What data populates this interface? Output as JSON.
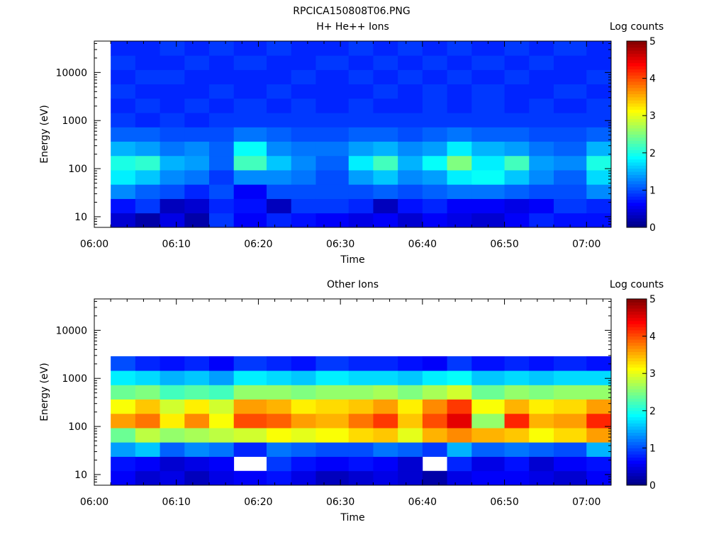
{
  "figure_title": "RPCICA150808T06.PNG",
  "chart_data": [
    {
      "type": "heatmap",
      "title": "H+ He++ Ions",
      "xlabel": "Time",
      "ylabel": "Energy (eV)",
      "x_ticks": [
        "06:00",
        "06:10",
        "06:20",
        "06:30",
        "06:40",
        "06:50",
        "07:00"
      ],
      "x_range": [
        "06:00",
        "07:03"
      ],
      "y_scale": "log",
      "y_ticks": [
        "10",
        "100",
        "1000",
        "10000"
      ],
      "y_range": [
        6,
        45000
      ],
      "colorbar": {
        "label": "Log counts",
        "ticks": [
          "0",
          "1",
          "2",
          "3",
          "4",
          "5"
        ],
        "range": [
          0,
          5
        ],
        "colormap": "jet"
      },
      "bins": [
        {
          "start": "06:02",
          "end": "06:05",
          "values": [
            0.4,
            0.7,
            1.3,
            1.8,
            2.0,
            1.5,
            1.1,
            0.9,
            0.8,
            0.9,
            0.8,
            0.9,
            0.8
          ]
        },
        {
          "start": "06:05",
          "end": "06:08",
          "values": [
            0.2,
            0.9,
            1.1,
            1.6,
            2.1,
            1.4,
            1.1,
            0.8,
            0.9,
            0.8,
            0.9,
            0.8,
            0.8
          ]
        },
        {
          "start": "06:08",
          "end": "06:11",
          "values": [
            0.5,
            0.3,
            1.0,
            1.3,
            1.5,
            1.2,
            1.0,
            0.9,
            0.8,
            0.8,
            0.9,
            0.8,
            0.9
          ]
        },
        {
          "start": "06:11",
          "end": "06:14",
          "values": [
            0.2,
            0.4,
            0.8,
            1.2,
            1.4,
            1.3,
            1.0,
            0.8,
            0.9,
            0.8,
            0.8,
            0.9,
            0.8
          ]
        },
        {
          "start": "06:14",
          "end": "06:17",
          "values": [
            0.9,
            0.8,
            1.0,
            0.9,
            1.1,
            1.1,
            1.0,
            0.9,
            0.8,
            0.9,
            0.8,
            0.8,
            0.9
          ]
        },
        {
          "start": "06:17",
          "end": "06:21",
          "values": [
            0.6,
            0.7,
            0.6,
            1.3,
            2.2,
            1.9,
            1.2,
            0.9,
            0.9,
            0.8,
            0.8,
            0.9,
            0.8
          ]
        },
        {
          "start": "06:21",
          "end": "06:24",
          "values": [
            0.8,
            0.3,
            1.0,
            1.3,
            1.6,
            1.3,
            1.1,
            0.9,
            0.8,
            0.9,
            0.8,
            0.8,
            0.9
          ]
        },
        {
          "start": "06:24",
          "end": "06:27",
          "values": [
            0.7,
            0.9,
            1.0,
            1.2,
            1.3,
            1.2,
            1.0,
            0.9,
            0.9,
            0.8,
            0.9,
            0.8,
            0.8
          ]
        },
        {
          "start": "06:27",
          "end": "06:31",
          "values": [
            0.6,
            0.9,
            1.0,
            1.0,
            1.1,
            1.2,
            1.0,
            0.9,
            0.8,
            0.8,
            0.8,
            0.9,
            0.8
          ]
        },
        {
          "start": "06:31",
          "end": "06:34",
          "values": [
            0.5,
            0.8,
            1.0,
            1.4,
            1.8,
            1.4,
            1.1,
            0.9,
            0.9,
            0.8,
            0.9,
            0.8,
            0.9
          ]
        },
        {
          "start": "06:34",
          "end": "06:37",
          "values": [
            0.6,
            0.3,
            1.1,
            1.6,
            2.2,
            1.5,
            1.1,
            0.9,
            0.8,
            0.9,
            0.8,
            0.9,
            0.8
          ]
        },
        {
          "start": "06:37",
          "end": "06:40",
          "values": [
            0.4,
            0.7,
            1.0,
            1.3,
            1.5,
            1.3,
            1.0,
            0.9,
            0.8,
            0.8,
            0.9,
            0.8,
            0.9
          ]
        },
        {
          "start": "06:40",
          "end": "06:43",
          "values": [
            0.6,
            0.8,
            1.1,
            1.4,
            1.9,
            1.4,
            1.1,
            0.9,
            0.9,
            0.9,
            0.8,
            0.9,
            0.8
          ]
        },
        {
          "start": "06:43",
          "end": "06:46",
          "values": [
            0.5,
            0.6,
            1.2,
            1.8,
            2.5,
            1.8,
            1.2,
            0.9,
            0.8,
            0.8,
            0.9,
            0.8,
            0.9
          ]
        },
        {
          "start": "06:46",
          "end": "06:50",
          "values": [
            0.4,
            0.6,
            1.2,
            1.9,
            1.8,
            1.5,
            1.1,
            0.9,
            0.9,
            0.9,
            0.8,
            0.9,
            0.8
          ]
        },
        {
          "start": "06:50",
          "end": "06:53",
          "values": [
            0.6,
            0.5,
            1.1,
            1.6,
            2.2,
            1.4,
            1.1,
            0.9,
            0.8,
            0.8,
            0.9,
            0.8,
            0.9
          ]
        },
        {
          "start": "06:53",
          "end": "06:56",
          "values": [
            0.8,
            0.6,
            1.0,
            1.3,
            1.4,
            1.2,
            1.0,
            0.9,
            0.9,
            0.8,
            0.8,
            0.9,
            0.8
          ]
        },
        {
          "start": "06:56",
          "end": "07:00",
          "values": [
            0.7,
            0.9,
            1.0,
            1.1,
            1.3,
            1.1,
            1.0,
            0.9,
            0.8,
            0.9,
            0.8,
            0.8,
            0.9
          ]
        },
        {
          "start": "07:00",
          "end": "07:03",
          "values": [
            0.7,
            0.8,
            1.3,
            1.7,
            2.0,
            1.5,
            1.1,
            0.9,
            0.9,
            0.8,
            0.9,
            0.8,
            0.8
          ]
        }
      ]
    },
    {
      "type": "heatmap",
      "title": "Other Ions",
      "xlabel": "Time",
      "ylabel": "Energy (eV)",
      "x_ticks": [
        "06:00",
        "06:10",
        "06:20",
        "06:30",
        "06:40",
        "06:50",
        "07:00"
      ],
      "x_range": [
        "06:00",
        "07:03"
      ],
      "y_scale": "log",
      "y_ticks": [
        "10",
        "100",
        "1000",
        "10000"
      ],
      "y_range": [
        6,
        45000
      ],
      "colorbar": {
        "label": "Log counts",
        "ticks": [
          "0",
          "1",
          "2",
          "3",
          "4",
          "5"
        ],
        "range": [
          0,
          5
        ],
        "colormap": "jet"
      },
      "bins": [
        {
          "start": "06:02",
          "end": "06:05",
          "values": [
            0.6,
            0.7,
            1.4,
            2.4,
            3.6,
            3.1,
            2.4,
            1.8,
            1.0,
            null,
            null,
            null,
            null
          ]
        },
        {
          "start": "06:05",
          "end": "06:08",
          "values": [
            0.4,
            0.6,
            1.6,
            2.8,
            3.8,
            3.4,
            2.5,
            1.7,
            0.8,
            null,
            null,
            null,
            null
          ]
        },
        {
          "start": "06:08",
          "end": "06:11",
          "values": [
            0.5,
            0.4,
            1.1,
            2.6,
            3.2,
            2.9,
            2.2,
            1.5,
            0.7,
            null,
            null,
            null,
            null
          ]
        },
        {
          "start": "06:11",
          "end": "06:14",
          "values": [
            0.3,
            0.5,
            1.3,
            2.7,
            3.7,
            3.2,
            2.3,
            1.6,
            0.8,
            null,
            null,
            null,
            null
          ]
        },
        {
          "start": "06:14",
          "end": "06:17",
          "values": [
            0.5,
            0.6,
            1.2,
            2.8,
            3.1,
            2.9,
            2.2,
            1.4,
            0.6,
            null,
            null,
            null,
            null
          ]
        },
        {
          "start": "06:17",
          "end": "06:21",
          "values": [
            0.6,
            null,
            0.8,
            2.9,
            4.0,
            3.6,
            2.6,
            1.8,
            0.9,
            null,
            null,
            null,
            null
          ]
        },
        {
          "start": "06:21",
          "end": "06:24",
          "values": [
            0.7,
            0.9,
            1.2,
            3.1,
            3.9,
            3.5,
            2.6,
            1.7,
            0.8,
            null,
            null,
            null,
            null
          ]
        },
        {
          "start": "06:24",
          "end": "06:27",
          "values": [
            0.5,
            0.7,
            1.1,
            3.0,
            3.6,
            3.2,
            2.5,
            1.6,
            0.7,
            null,
            null,
            null,
            null
          ]
        },
        {
          "start": "06:27",
          "end": "06:31",
          "values": [
            0.3,
            0.6,
            1.0,
            3.1,
            3.5,
            3.3,
            2.6,
            1.8,
            0.9,
            null,
            null,
            null,
            null
          ]
        },
        {
          "start": "06:31",
          "end": "06:34",
          "values": [
            0.4,
            0.7,
            1.0,
            3.3,
            3.8,
            3.4,
            2.6,
            1.7,
            0.8,
            null,
            null,
            null,
            null
          ]
        },
        {
          "start": "06:34",
          "end": "06:37",
          "values": [
            0.5,
            0.6,
            1.2,
            3.4,
            4.1,
            3.6,
            2.7,
            1.7,
            0.8,
            null,
            null,
            null,
            null
          ]
        },
        {
          "start": "06:37",
          "end": "06:40",
          "values": [
            0.4,
            0.4,
            1.1,
            3.0,
            3.4,
            3.2,
            2.5,
            1.6,
            0.7,
            null,
            null,
            null,
            null
          ]
        },
        {
          "start": "06:40",
          "end": "06:43",
          "values": [
            0.2,
            null,
            0.9,
            3.5,
            4.0,
            3.7,
            2.7,
            1.8,
            0.6,
            null,
            null,
            null,
            null
          ]
        },
        {
          "start": "06:43",
          "end": "06:46",
          "values": [
            0.5,
            0.8,
            1.5,
            3.7,
            4.5,
            4.1,
            2.9,
            1.9,
            0.9,
            null,
            null,
            null,
            null
          ]
        },
        {
          "start": "06:46",
          "end": "06:50",
          "values": [
            0.6,
            0.5,
            1.1,
            3.5,
            2.6,
            3.1,
            2.4,
            1.6,
            0.7,
            null,
            null,
            null,
            null
          ]
        },
        {
          "start": "06:50",
          "end": "06:53",
          "values": [
            0.6,
            0.7,
            1.2,
            3.4,
            4.2,
            3.5,
            2.6,
            1.7,
            0.8,
            null,
            null,
            null,
            null
          ]
        },
        {
          "start": "06:53",
          "end": "06:56",
          "values": [
            0.5,
            0.4,
            1.1,
            3.1,
            3.5,
            3.2,
            2.5,
            1.6,
            0.7,
            null,
            null,
            null,
            null
          ]
        },
        {
          "start": "06:56",
          "end": "07:00",
          "values": [
            0.4,
            0.6,
            1.0,
            3.3,
            3.6,
            3.3,
            2.6,
            1.7,
            0.8,
            null,
            null,
            null,
            null
          ]
        },
        {
          "start": "07:00",
          "end": "07:03",
          "values": [
            0.6,
            0.7,
            1.5,
            3.6,
            4.2,
            3.6,
            2.6,
            1.7,
            0.7,
            null,
            null,
            null,
            null
          ]
        }
      ]
    }
  ]
}
